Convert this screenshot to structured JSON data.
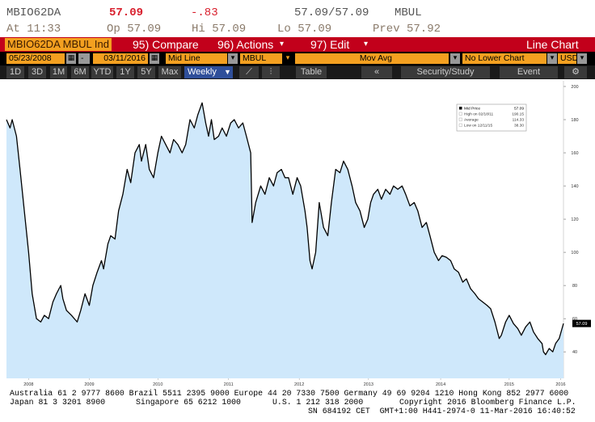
{
  "header": {
    "ticker": "MBIO62DA",
    "last": "57.09",
    "change": "-.83",
    "bid_ask": "57.09/57.09",
    "source": "MBUL",
    "time": "At 11:33",
    "open": "Op 57.09",
    "high": "Hi 57.09",
    "low": "Lo 57.09",
    "prev": "Prev 57.92"
  },
  "menu": {
    "security": "MBIO62DA MBUL Ind",
    "compare": "95) Compare",
    "actions": "96) Actions",
    "edit": "97) Edit",
    "view": "Line Chart"
  },
  "controls": {
    "start_date": "05/23/2008",
    "separator": "-",
    "end_date": "03/11/2016",
    "line_type": "Mid Line",
    "source": "MBUL",
    "overlay": "Mov Avg",
    "lower_chart": "No Lower Chart",
    "currency": "USD"
  },
  "toolbar": {
    "ranges": [
      "1D",
      "3D",
      "1M",
      "6M",
      "YTD",
      "1Y",
      "5Y",
      "Max"
    ],
    "period": "Weekly",
    "table": "Table",
    "study": "Security/Study",
    "event": "Event"
  },
  "chart_data": {
    "type": "area",
    "area_color": "#cfe8fb",
    "grid": false,
    "x": [
      2008.39,
      2008.44,
      2008.47,
      2008.53,
      2008.58,
      2008.64,
      2008.7,
      2008.75,
      2008.81,
      2008.87,
      2008.92,
      2008.98,
      2009.04,
      2009.09,
      2009.15,
      2009.18,
      2009.23,
      2009.3,
      2009.38,
      2009.43,
      2009.49,
      2009.55,
      2009.6,
      2009.66,
      2009.72,
      2009.75,
      2009.81,
      2009.85,
      2009.91,
      2009.96,
      2010.02,
      2010.08,
      2010.13,
      2010.19,
      2010.25,
      2010.28,
      2010.34,
      2010.39,
      2010.45,
      2010.51,
      2010.56,
      2010.62,
      2010.68,
      2010.73,
      2010.79,
      2010.85,
      2010.9,
      2010.96,
      2011.02,
      2011.07,
      2011.13,
      2011.18,
      2011.22,
      2011.26,
      2011.3,
      2011.36,
      2011.41,
      2011.47,
      2011.53,
      2011.58,
      2011.64,
      2011.7,
      2011.75,
      2011.81,
      2011.83,
      2011.88,
      2011.95,
      2012.01,
      2012.07,
      2012.13,
      2012.18,
      2012.24,
      2012.29,
      2012.34,
      2012.4,
      2012.46,
      2012.51,
      2012.57,
      2012.6,
      2012.64,
      2012.67,
      2012.72,
      2012.77,
      2012.83,
      2012.89,
      2012.94,
      2013.0,
      2013.06,
      2013.11,
      2013.17,
      2013.23,
      2013.28,
      2013.34,
      2013.4,
      2013.45,
      2013.49,
      2013.53,
      2013.59,
      2013.64,
      2013.7,
      2013.76,
      2013.81,
      2013.87,
      2013.93,
      2013.98,
      2014.04,
      2014.1,
      2014.15,
      2014.21,
      2014.27,
      2014.32,
      2014.38,
      2014.44,
      2014.49,
      2014.55,
      2014.61,
      2014.66,
      2014.72,
      2014.78,
      2014.83,
      2014.89,
      2014.95,
      2015.0,
      2015.06,
      2015.12,
      2015.17,
      2015.23,
      2015.29,
      2015.32,
      2015.38,
      2015.43,
      2015.49,
      2015.55,
      2015.6,
      2015.66,
      2015.72,
      2015.77,
      2015.83,
      2015.89,
      2015.91,
      2015.94,
      2015.99,
      2016.04,
      2016.08,
      2016.13,
      2016.19
    ],
    "series": [
      {
        "name": "Mid Price",
        "color": "#000000",
        "values": [
          180,
          175,
          180,
          170,
          150,
          125,
          100,
          75,
          60,
          58,
          62,
          60,
          70,
          75,
          80,
          72,
          65,
          62,
          58,
          65,
          75,
          68,
          80,
          88,
          95,
          90,
          105,
          110,
          108,
          125,
          135,
          150,
          142,
          160,
          165,
          155,
          165,
          150,
          145,
          160,
          170,
          165,
          160,
          168,
          165,
          160,
          165,
          180,
          175,
          183,
          190.15,
          178,
          170,
          180,
          168,
          170,
          175,
          170,
          178,
          180,
          175,
          178,
          170,
          160,
          118,
          130,
          140,
          135,
          145,
          140,
          148,
          150,
          145,
          145,
          135,
          145,
          140,
          125,
          115,
          95,
          90,
          100,
          130,
          115,
          110,
          130,
          150,
          148,
          155,
          150,
          140,
          130,
          125,
          115,
          120,
          130,
          135,
          138,
          132,
          138,
          135,
          140,
          138,
          140,
          135,
          128,
          130,
          125,
          115,
          118,
          110,
          100,
          95,
          98,
          97,
          95,
          90,
          88,
          82,
          84,
          78,
          75,
          72,
          70,
          68,
          66,
          58,
          48,
          50,
          58,
          62,
          57,
          54,
          50,
          55,
          58,
          52,
          48,
          45,
          40,
          38.3,
          42,
          40,
          45,
          48,
          57.09
        ]
      }
    ],
    "xlim": [
      2008.39,
      2016.19
    ],
    "xticks": [
      {
        "value": 2008.7,
        "label": "2008"
      },
      {
        "value": 2009.55,
        "label": "2009"
      },
      {
        "value": 2010.51,
        "label": "2010"
      },
      {
        "value": 2011.5,
        "label": "2011"
      },
      {
        "value": 2012.49,
        "label": "2012"
      },
      {
        "value": 2013.46,
        "label": "2013"
      },
      {
        "value": 2014.47,
        "label": "2014"
      },
      {
        "value": 2015.43,
        "label": "2015"
      },
      {
        "value": 2016.15,
        "label": "2016"
      }
    ],
    "ylim": [
      24,
      203.4
    ],
    "yticks": [
      40,
      60,
      80,
      100,
      120,
      140,
      160,
      180,
      200
    ],
    "stats": [
      {
        "label": "High on 02/18/11",
        "value": "190.15"
      },
      {
        "label": "Average",
        "value": "114.33"
      },
      {
        "label": "Low on 12/11/15",
        "value": "38.30"
      }
    ]
  },
  "footer": {
    "line1": "Australia 61 2 9777 8600 Brazil 5511 2395 9000 Europe 44 20 7330 7500 Germany 49 69 9204 1210 Hong Kong 852 2977 6000",
    "line2": [
      "Japan 81 3 3201 8900",
      "Singapore 65 6212 1000",
      "U.S. 1 212 318 2000",
      "Copyright 2016 Bloomberg Finance L.P."
    ],
    "line3": "SN 684192 CET  GMT+1:00 H441-2974-0 11-Mar-2016 16:40:52"
  }
}
